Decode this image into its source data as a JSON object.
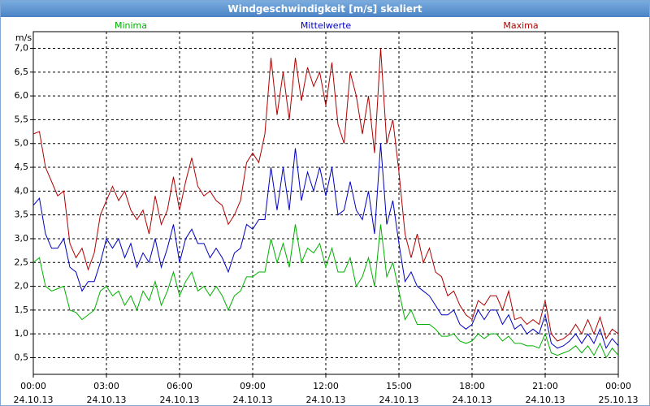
{
  "chart_data": {
    "type": "line",
    "title": "Windgeschwindigkeit [m/s] skaliert",
    "y_label": "m/s",
    "grid": true,
    "xlim": [
      0,
      24
    ],
    "ylim": [
      0.15,
      7.35
    ],
    "xticks": [
      {
        "value": 0,
        "label": "00:00\n24.10.13"
      },
      {
        "value": 3,
        "label": "03:00\n24.10.13"
      },
      {
        "value": 6,
        "label": "06:00\n24.10.13"
      },
      {
        "value": 9,
        "label": "09:00\n24.10.13"
      },
      {
        "value": 12,
        "label": "12:00\n24.10.13"
      },
      {
        "value": 15,
        "label": "15:00\n24.10.13"
      },
      {
        "value": 18,
        "label": "18:00\n24.10.13"
      },
      {
        "value": 21,
        "label": "21:00\n24.10.13"
      },
      {
        "value": 24,
        "label": "00:00\n25.10.13"
      }
    ],
    "yticks": [
      {
        "value": 0.5,
        "label": "0,5"
      },
      {
        "value": 1,
        "label": "1,0"
      },
      {
        "value": 1.5,
        "label": "1,5"
      },
      {
        "value": 2,
        "label": "2,0"
      },
      {
        "value": 2.5,
        "label": "2,5"
      },
      {
        "value": 3,
        "label": "3,0"
      },
      {
        "value": 3.5,
        "label": "3,5"
      },
      {
        "value": 4,
        "label": "4,0"
      },
      {
        "value": 4.5,
        "label": "4,5"
      },
      {
        "value": 5,
        "label": "5,0"
      },
      {
        "value": 5.5,
        "label": "5,5"
      },
      {
        "value": 6,
        "label": "6,0"
      },
      {
        "value": 6.5,
        "label": "6,5"
      },
      {
        "value": 7,
        "label": "7,0"
      }
    ],
    "x": [
      0,
      0.25,
      0.5,
      0.75,
      1,
      1.25,
      1.5,
      1.75,
      2,
      2.25,
      2.5,
      2.75,
      3,
      3.25,
      3.5,
      3.75,
      4,
      4.25,
      4.5,
      4.75,
      5,
      5.25,
      5.5,
      5.75,
      6,
      6.25,
      6.5,
      6.75,
      7,
      7.25,
      7.5,
      7.75,
      8,
      8.25,
      8.5,
      8.75,
      9,
      9.25,
      9.5,
      9.75,
      10,
      10.25,
      10.5,
      10.75,
      11,
      11.25,
      11.5,
      11.75,
      12,
      12.25,
      12.5,
      12.75,
      13,
      13.25,
      13.5,
      13.75,
      14,
      14.25,
      14.5,
      14.75,
      15,
      15.25,
      15.5,
      15.75,
      16,
      16.25,
      16.5,
      16.75,
      17,
      17.25,
      17.5,
      17.75,
      18,
      18.25,
      18.5,
      18.75,
      19,
      19.25,
      19.5,
      19.75,
      20,
      20.25,
      20.5,
      20.75,
      21,
      21.25,
      21.5,
      21.75,
      22,
      22.25,
      22.5,
      22.75,
      23,
      23.25,
      23.5,
      23.75,
      24
    ],
    "series": [
      {
        "name": "Minima",
        "color": "#00b000",
        "values": [
          2.5,
          2.6,
          2.0,
          1.9,
          1.95,
          2.0,
          1.5,
          1.45,
          1.3,
          1.4,
          1.5,
          1.9,
          2.0,
          1.8,
          1.9,
          1.6,
          1.8,
          1.5,
          1.9,
          1.7,
          2.1,
          1.6,
          1.9,
          2.3,
          1.8,
          2.1,
          2.3,
          1.9,
          2.0,
          1.8,
          2.0,
          1.8,
          1.5,
          1.8,
          1.9,
          2.2,
          2.2,
          2.3,
          2.3,
          3.0,
          2.5,
          2.9,
          2.4,
          3.3,
          2.5,
          2.8,
          2.7,
          2.9,
          2.4,
          2.8,
          2.3,
          2.3,
          2.6,
          2.0,
          2.2,
          2.6,
          2.0,
          3.3,
          2.2,
          2.5,
          1.9,
          1.3,
          1.5,
          1.2,
          1.2,
          1.2,
          1.1,
          0.95,
          0.95,
          1.0,
          0.85,
          0.8,
          0.85,
          1.0,
          0.9,
          1.0,
          1.0,
          0.85,
          0.95,
          0.8,
          0.8,
          0.75,
          0.75,
          0.7,
          1.0,
          0.6,
          0.55,
          0.6,
          0.65,
          0.75,
          0.6,
          0.75,
          0.55,
          0.8,
          0.5,
          0.7,
          0.55
        ]
      },
      {
        "name": "Mittelwerte",
        "color": "#0000c0",
        "values": [
          3.7,
          3.85,
          3.1,
          2.8,
          2.8,
          3.0,
          2.4,
          2.3,
          1.9,
          2.1,
          2.1,
          2.5,
          3.0,
          2.8,
          3.0,
          2.6,
          2.9,
          2.4,
          2.7,
          2.5,
          3.0,
          2.4,
          2.8,
          3.3,
          2.5,
          3.0,
          3.2,
          2.9,
          2.9,
          2.6,
          2.8,
          2.6,
          2.3,
          2.7,
          2.8,
          3.3,
          3.2,
          3.4,
          3.4,
          4.5,
          3.6,
          4.5,
          3.6,
          4.9,
          3.8,
          4.4,
          4.0,
          4.5,
          3.9,
          4.5,
          3.5,
          3.6,
          4.2,
          3.6,
          3.4,
          4.0,
          3.1,
          5.0,
          3.3,
          3.8,
          2.9,
          2.1,
          2.3,
          2.0,
          1.9,
          1.8,
          1.6,
          1.4,
          1.4,
          1.5,
          1.2,
          1.1,
          1.2,
          1.5,
          1.3,
          1.5,
          1.5,
          1.2,
          1.4,
          1.1,
          1.2,
          1.0,
          1.1,
          1.0,
          1.4,
          0.8,
          0.7,
          0.75,
          0.85,
          1.0,
          0.8,
          1.0,
          0.8,
          1.1,
          0.7,
          0.9,
          0.75
        ]
      },
      {
        "name": "Maxima",
        "color": "#b00000",
        "values": [
          5.2,
          5.25,
          4.5,
          4.2,
          3.9,
          4.0,
          2.9,
          2.6,
          2.8,
          2.35,
          2.7,
          3.5,
          3.8,
          4.1,
          3.8,
          4.0,
          3.6,
          3.4,
          3.6,
          3.1,
          3.9,
          3.3,
          3.6,
          4.3,
          3.6,
          4.2,
          4.7,
          4.1,
          3.9,
          4.0,
          3.8,
          3.7,
          3.3,
          3.5,
          3.8,
          4.6,
          4.8,
          4.6,
          5.2,
          6.8,
          5.6,
          6.5,
          5.5,
          6.8,
          5.9,
          6.6,
          6.2,
          6.5,
          5.8,
          6.7,
          5.4,
          5.0,
          6.5,
          6.0,
          5.2,
          6.0,
          4.8,
          7.0,
          5.0,
          5.5,
          4.4,
          3.1,
          2.6,
          3.1,
          2.5,
          2.8,
          2.3,
          2.2,
          1.8,
          1.9,
          1.6,
          1.4,
          1.3,
          1.7,
          1.6,
          1.8,
          1.8,
          1.5,
          1.9,
          1.3,
          1.35,
          1.2,
          1.3,
          1.2,
          1.7,
          1.0,
          0.85,
          0.9,
          1.0,
          1.2,
          1.0,
          1.3,
          1.0,
          1.35,
          0.9,
          1.1,
          1.0
        ]
      }
    ]
  }
}
